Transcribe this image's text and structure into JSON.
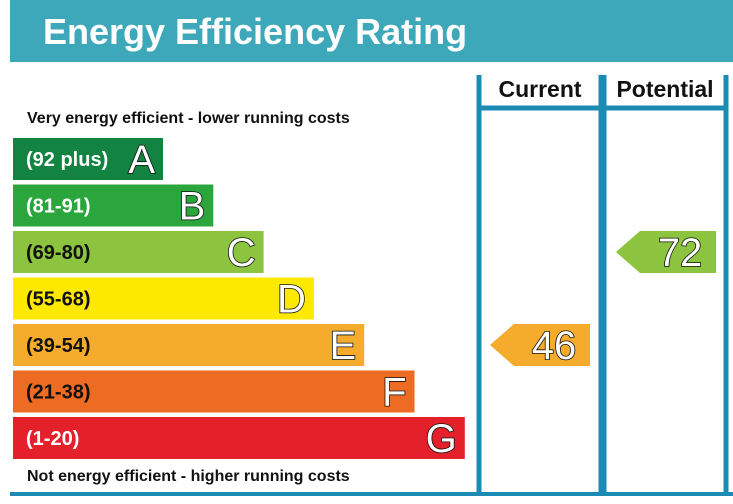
{
  "chart_data": {
    "type": "bar",
    "title": "Energy Efficiency Rating",
    "columns": [
      "Current",
      "Potential"
    ],
    "top_label": "Very energy efficient - lower running costs",
    "bottom_label": "Not energy efficient - higher running costs",
    "bands": [
      {
        "range": "(92 plus)",
        "letter": "A",
        "color": "#128341"
      },
      {
        "range": "(81-91)",
        "letter": "B",
        "color": "#2ba63c"
      },
      {
        "range": "(69-80)",
        "letter": "C",
        "color": "#8cc43f"
      },
      {
        "range": "(55-68)",
        "letter": "D",
        "color": "#fde900"
      },
      {
        "range": "(39-54)",
        "letter": "E",
        "color": "#f5ab2b"
      },
      {
        "range": "(21-38)",
        "letter": "F",
        "color": "#ed6b22"
      },
      {
        "range": "(1-20)",
        "letter": "G",
        "color": "#e4202b"
      }
    ],
    "current": {
      "value": 46,
      "band": "E",
      "color": "#f5ab2b"
    },
    "potential": {
      "value": 72,
      "band": "C",
      "color": "#8cc43f"
    }
  }
}
